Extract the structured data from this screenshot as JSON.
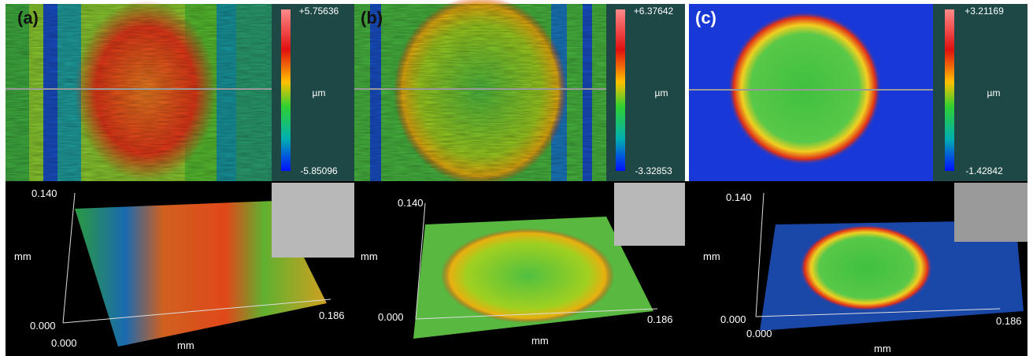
{
  "panels": [
    {
      "label": "(a)",
      "colorbar": {
        "max": "+5.75636",
        "unit": "µm",
        "min": "-5.85096"
      },
      "plot3d": {
        "z_max": "0.140",
        "z_unit": "mm",
        "origin_z": "0.000",
        "origin_x": "0.000",
        "x_max": "0.186",
        "x_unit": "mm"
      }
    },
    {
      "label": "(b)",
      "colorbar": {
        "max": "+6.37642",
        "unit": "µm",
        "min": "-3.32853"
      },
      "plot3d": {
        "z_max": "0.140",
        "z_unit": "mm",
        "origin_z": "0.000",
        "x_max": "0.186",
        "x_unit": "mm"
      }
    },
    {
      "label": "(c)",
      "colorbar": {
        "max": "+3.21169",
        "unit": "µm",
        "min": "-1.42842"
      },
      "plot3d": {
        "z_max": "0.140",
        "z_unit": "mm",
        "origin_z": "0.000",
        "origin_x": "0.000",
        "x_max": "0.186",
        "x_unit": "mm"
      }
    }
  ]
}
